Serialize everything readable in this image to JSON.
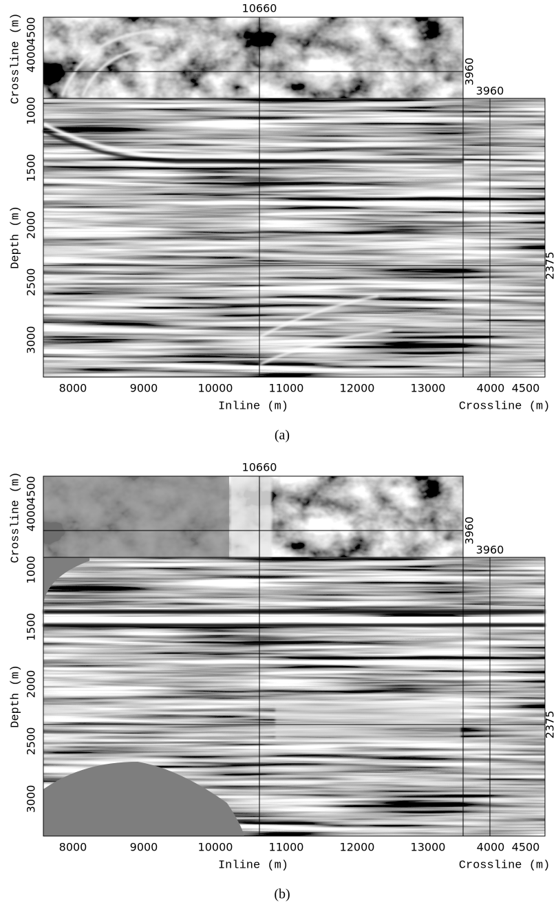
{
  "panels": [
    {
      "caption": "(a)",
      "top_marker": 10660,
      "slice_marker": 3960,
      "side_marker": 3960,
      "depth_marker": 2375,
      "top_axis": {
        "label": "Crossline (m)",
        "ticks": [
          4000,
          4500
        ]
      },
      "depth_axis": {
        "label": "Depth (m)",
        "ticks": [
          1000,
          1500,
          2000,
          2500,
          3000
        ]
      },
      "inline_axis": {
        "label": "Inline (m)",
        "ticks": [
          8000,
          9000,
          10000,
          11000,
          12000,
          13000
        ]
      },
      "side_axis": {
        "label": "Crossline (m)",
        "ticks": [
          4000,
          4500
        ]
      }
    },
    {
      "caption": "(b)",
      "top_marker": 10660,
      "slice_marker": 3960,
      "side_marker": 3960,
      "depth_marker": 2375,
      "top_axis": {
        "label": "Crossline (m)",
        "ticks": [
          4000,
          4500
        ]
      },
      "depth_axis": {
        "label": "Depth (m)",
        "ticks": [
          1000,
          1500,
          2000,
          2500,
          3000
        ]
      },
      "inline_axis": {
        "label": "Inline (m)",
        "ticks": [
          8000,
          9000,
          10000,
          11000,
          12000,
          13000
        ]
      },
      "side_axis": {
        "label": "Crossline (m)",
        "ticks": [
          4000,
          4500
        ]
      }
    }
  ]
}
